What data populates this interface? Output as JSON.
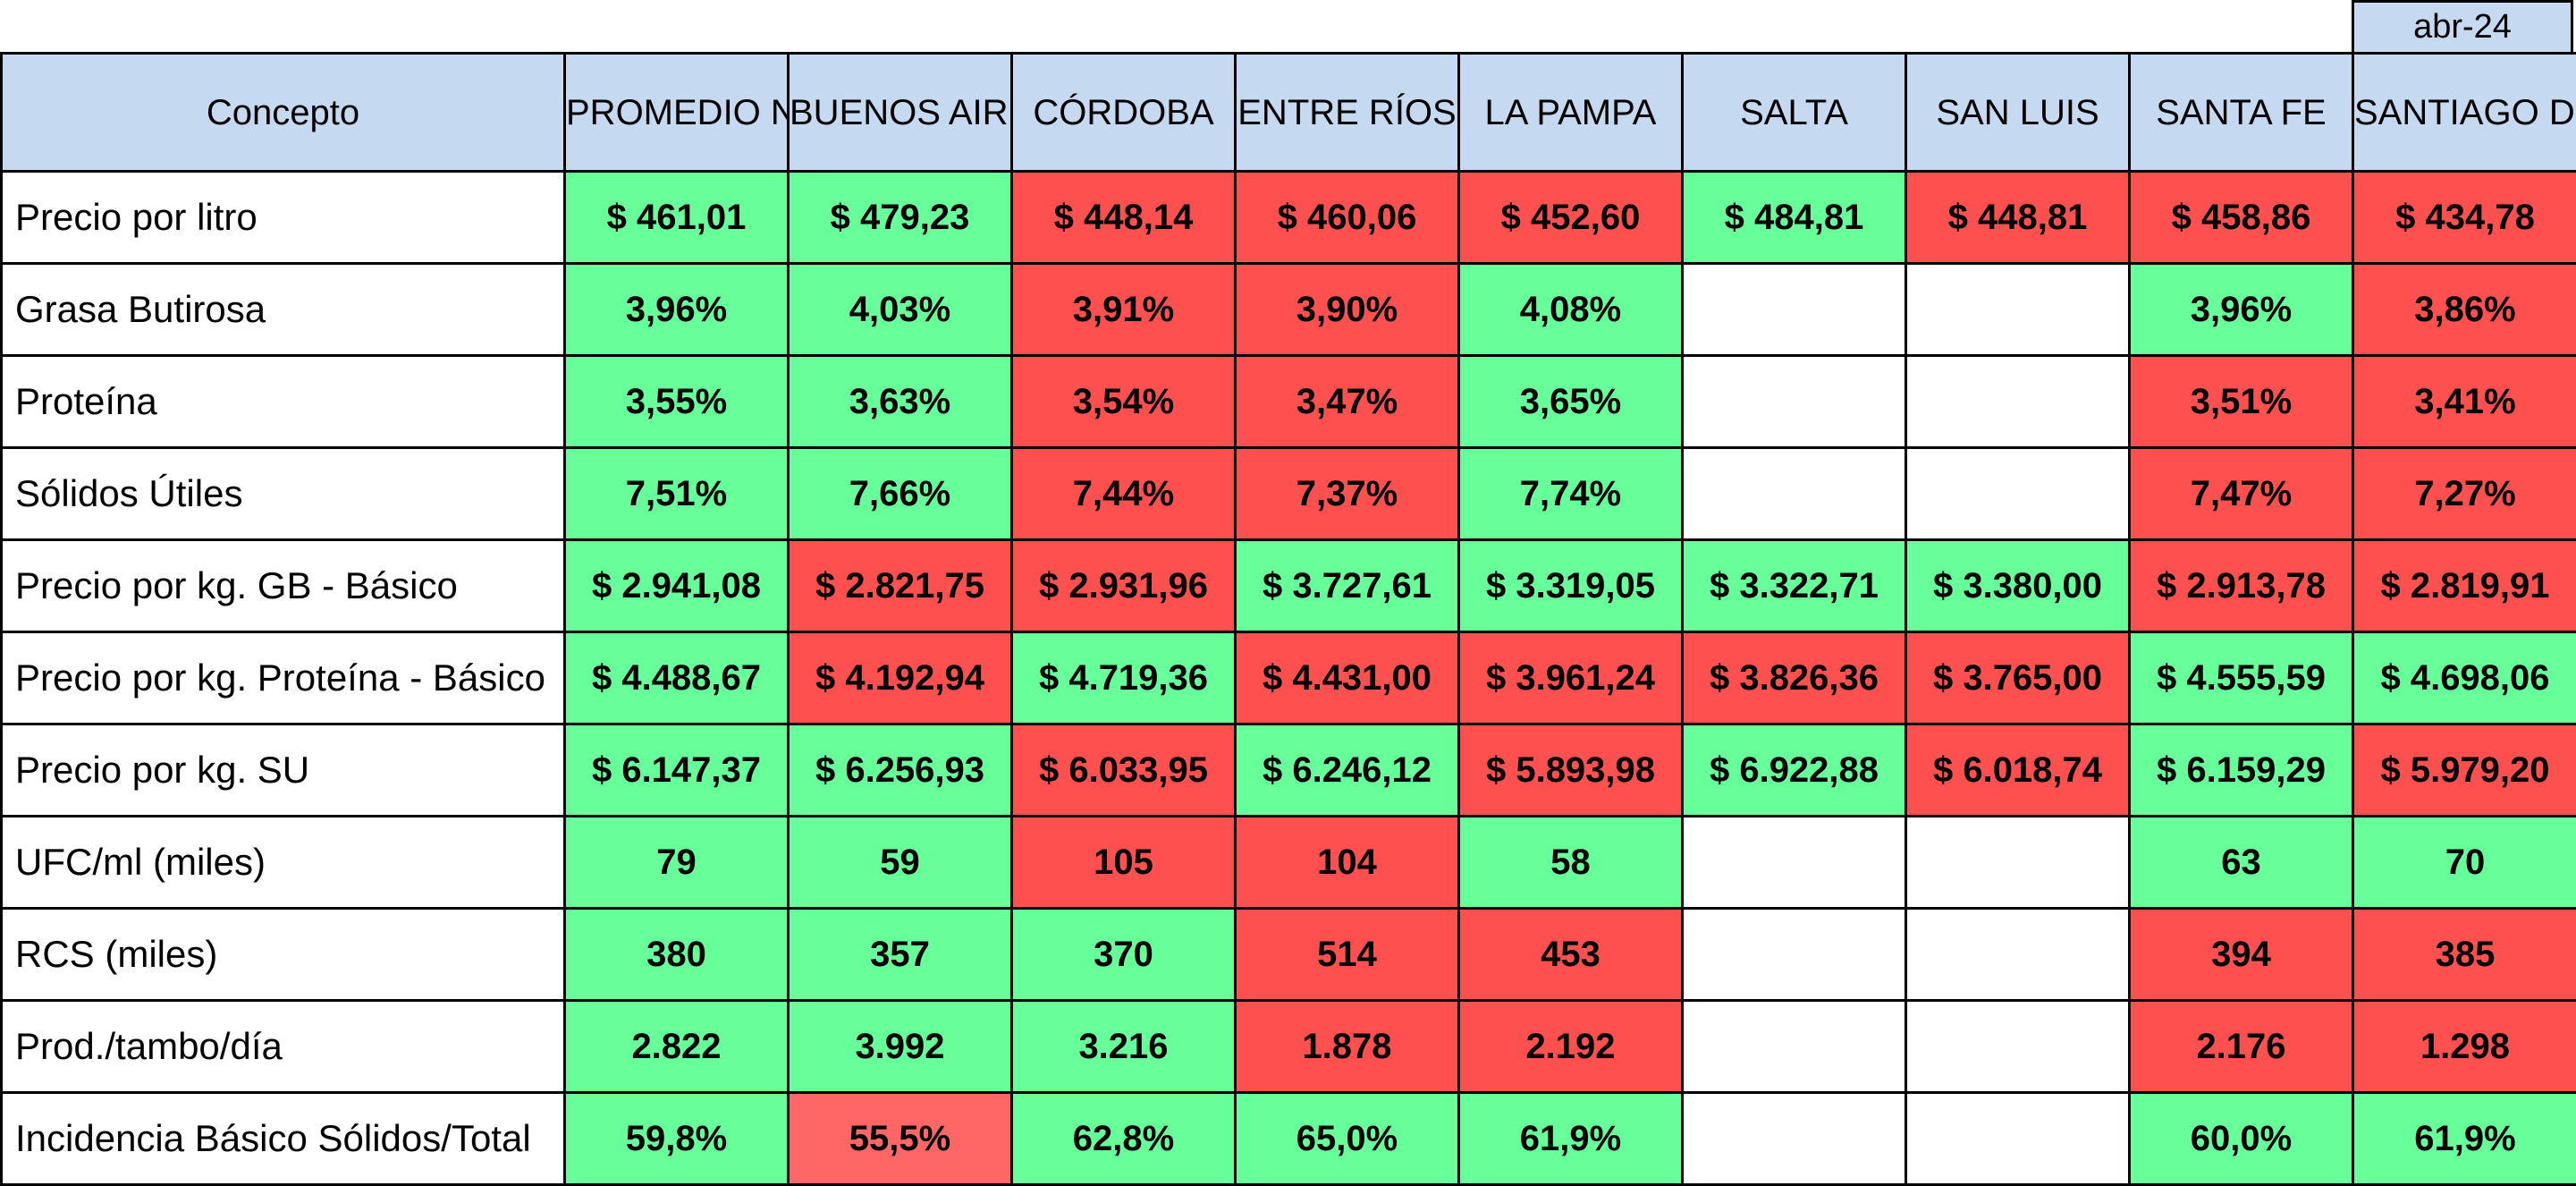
{
  "period": "abr-24",
  "columns": [
    "Concepto",
    "PROMEDIO NACIONAL",
    "BUENOS AIRES",
    "CÓRDOBA",
    "ENTRE RÍOS",
    "LA PAMPA",
    "SALTA",
    "SAN LUIS",
    "SANTA FE",
    "SANTIAGO DEL ESTERO"
  ],
  "status_colors": {
    "good": "#66ff99",
    "bad": "#ff5050",
    "warn": "#ff6666",
    "empty": "#ffffff"
  },
  "rows": [
    {
      "label": "Precio por litro",
      "cells": [
        {
          "value": "$ 461,01",
          "status": "good"
        },
        {
          "value": "$ 479,23",
          "status": "good"
        },
        {
          "value": "$ 448,14",
          "status": "bad"
        },
        {
          "value": "$ 460,06",
          "status": "bad"
        },
        {
          "value": "$ 452,60",
          "status": "bad"
        },
        {
          "value": "$ 484,81",
          "status": "good"
        },
        {
          "value": "$ 448,81",
          "status": "bad"
        },
        {
          "value": "$ 458,86",
          "status": "bad"
        },
        {
          "value": "$ 434,78",
          "status": "bad"
        }
      ]
    },
    {
      "label": "Grasa Butirosa",
      "cells": [
        {
          "value": "3,96%",
          "status": "good"
        },
        {
          "value": "4,03%",
          "status": "good"
        },
        {
          "value": "3,91%",
          "status": "bad"
        },
        {
          "value": "3,90%",
          "status": "bad"
        },
        {
          "value": "4,08%",
          "status": "good"
        },
        {
          "value": "",
          "status": "empty"
        },
        {
          "value": "",
          "status": "empty"
        },
        {
          "value": "3,96%",
          "status": "good"
        },
        {
          "value": "3,86%",
          "status": "bad"
        }
      ]
    },
    {
      "label": "Proteína",
      "cells": [
        {
          "value": "3,55%",
          "status": "good"
        },
        {
          "value": "3,63%",
          "status": "good"
        },
        {
          "value": "3,54%",
          "status": "bad"
        },
        {
          "value": "3,47%",
          "status": "bad"
        },
        {
          "value": "3,65%",
          "status": "good"
        },
        {
          "value": "",
          "status": "empty"
        },
        {
          "value": "",
          "status": "empty"
        },
        {
          "value": "3,51%",
          "status": "bad"
        },
        {
          "value": "3,41%",
          "status": "bad"
        }
      ]
    },
    {
      "label": "Sólidos Útiles",
      "cells": [
        {
          "value": "7,51%",
          "status": "good"
        },
        {
          "value": "7,66%",
          "status": "good"
        },
        {
          "value": "7,44%",
          "status": "bad"
        },
        {
          "value": "7,37%",
          "status": "bad"
        },
        {
          "value": "7,74%",
          "status": "good"
        },
        {
          "value": "",
          "status": "empty"
        },
        {
          "value": "",
          "status": "empty"
        },
        {
          "value": "7,47%",
          "status": "bad"
        },
        {
          "value": "7,27%",
          "status": "bad"
        }
      ]
    },
    {
      "label": "Precio por kg. GB - Básico",
      "cells": [
        {
          "value": "$ 2.941,08",
          "status": "good"
        },
        {
          "value": "$ 2.821,75",
          "status": "bad"
        },
        {
          "value": "$ 2.931,96",
          "status": "bad"
        },
        {
          "value": "$ 3.727,61",
          "status": "good"
        },
        {
          "value": "$ 3.319,05",
          "status": "good"
        },
        {
          "value": "$ 3.322,71",
          "status": "good"
        },
        {
          "value": "$ 3.380,00",
          "status": "good"
        },
        {
          "value": "$ 2.913,78",
          "status": "bad"
        },
        {
          "value": "$ 2.819,91",
          "status": "bad"
        }
      ]
    },
    {
      "label": "Precio por kg. Proteína - Básico",
      "cells": [
        {
          "value": "$ 4.488,67",
          "status": "good"
        },
        {
          "value": "$ 4.192,94",
          "status": "bad"
        },
        {
          "value": "$ 4.719,36",
          "status": "good"
        },
        {
          "value": "$ 4.431,00",
          "status": "bad"
        },
        {
          "value": "$ 3.961,24",
          "status": "bad"
        },
        {
          "value": "$ 3.826,36",
          "status": "bad"
        },
        {
          "value": "$ 3.765,00",
          "status": "bad"
        },
        {
          "value": "$ 4.555,59",
          "status": "good"
        },
        {
          "value": "$ 4.698,06",
          "status": "good"
        }
      ]
    },
    {
      "label": "Precio por kg. SU",
      "cells": [
        {
          "value": "$ 6.147,37",
          "status": "good"
        },
        {
          "value": "$ 6.256,93",
          "status": "good"
        },
        {
          "value": "$ 6.033,95",
          "status": "bad"
        },
        {
          "value": "$ 6.246,12",
          "status": "good"
        },
        {
          "value": "$ 5.893,98",
          "status": "bad"
        },
        {
          "value": "$ 6.922,88",
          "status": "good"
        },
        {
          "value": "$ 6.018,74",
          "status": "bad"
        },
        {
          "value": "$ 6.159,29",
          "status": "good"
        },
        {
          "value": "$ 5.979,20",
          "status": "bad"
        }
      ]
    },
    {
      "label": "UFC/ml (miles)",
      "cells": [
        {
          "value": "79",
          "status": "good"
        },
        {
          "value": "59",
          "status": "good"
        },
        {
          "value": "105",
          "status": "bad"
        },
        {
          "value": "104",
          "status": "bad"
        },
        {
          "value": "58",
          "status": "good"
        },
        {
          "value": "",
          "status": "empty"
        },
        {
          "value": "",
          "status": "empty"
        },
        {
          "value": "63",
          "status": "good"
        },
        {
          "value": "70",
          "status": "good"
        }
      ]
    },
    {
      "label": "RCS (miles)",
      "cells": [
        {
          "value": "380",
          "status": "good"
        },
        {
          "value": "357",
          "status": "good"
        },
        {
          "value": "370",
          "status": "good"
        },
        {
          "value": "514",
          "status": "bad"
        },
        {
          "value": "453",
          "status": "bad"
        },
        {
          "value": "",
          "status": "empty"
        },
        {
          "value": "",
          "status": "empty"
        },
        {
          "value": "394",
          "status": "bad"
        },
        {
          "value": "385",
          "status": "bad"
        }
      ]
    },
    {
      "label": "Prod./tambo/día",
      "cells": [
        {
          "value": "2.822",
          "status": "good"
        },
        {
          "value": "3.992",
          "status": "good"
        },
        {
          "value": "3.216",
          "status": "good"
        },
        {
          "value": "1.878",
          "status": "bad"
        },
        {
          "value": "2.192",
          "status": "bad"
        },
        {
          "value": "",
          "status": "empty"
        },
        {
          "value": "",
          "status": "empty"
        },
        {
          "value": "2.176",
          "status": "bad"
        },
        {
          "value": "1.298",
          "status": "bad"
        }
      ]
    },
    {
      "label": "Incidencia Básico Sólidos/Total",
      "cells": [
        {
          "value": "59,8%",
          "status": "good"
        },
        {
          "value": "55,5%",
          "status": "warn"
        },
        {
          "value": "62,8%",
          "status": "good"
        },
        {
          "value": "65,0%",
          "status": "good"
        },
        {
          "value": "61,9%",
          "status": "good"
        },
        {
          "value": "",
          "status": "empty"
        },
        {
          "value": "",
          "status": "empty"
        },
        {
          "value": "60,0%",
          "status": "good"
        },
        {
          "value": "61,9%",
          "status": "good"
        }
      ]
    }
  ]
}
